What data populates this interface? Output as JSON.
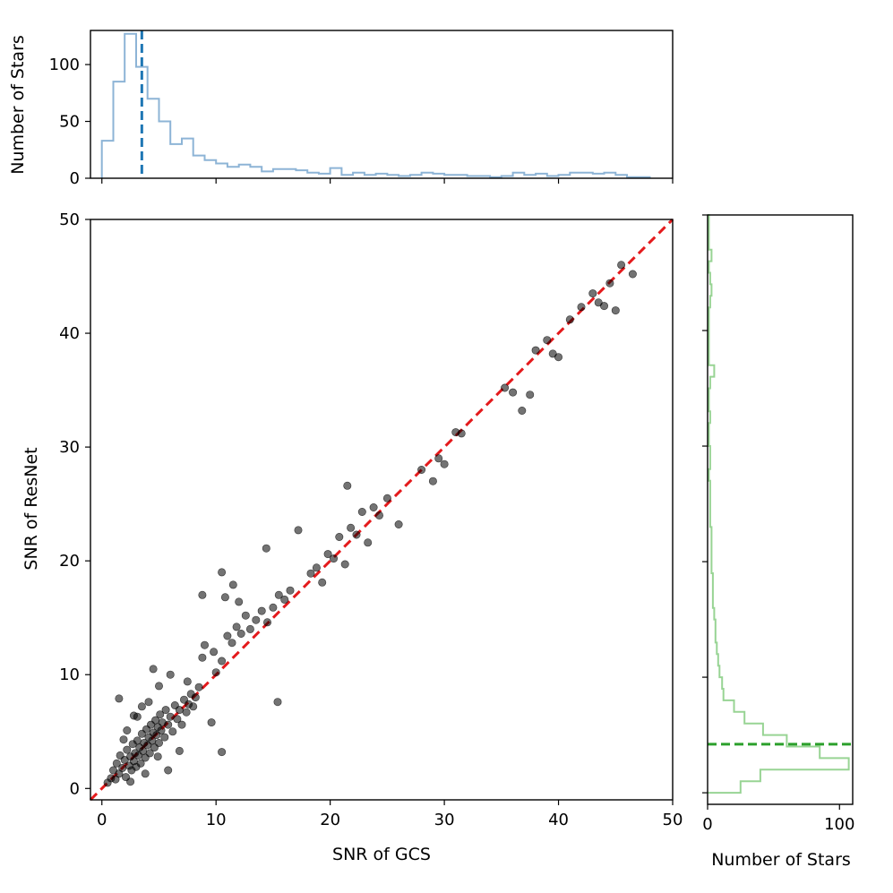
{
  "chart_data": [
    {
      "type": "scatter",
      "panel": "main",
      "xlabel": "SNR of GCS",
      "ylabel": "SNR of ResNet",
      "xlim": [
        -1,
        50
      ],
      "ylim": [
        -1,
        50
      ],
      "xticks": [
        "0",
        "10",
        "20",
        "30",
        "40",
        "50"
      ],
      "yticks": [
        "0",
        "10",
        "20",
        "30",
        "40",
        "50"
      ],
      "point_color": "#000000",
      "point_opacity": 0.55,
      "reference_line": {
        "from": [
          -1,
          -1
        ],
        "to": [
          50,
          50
        ],
        "color": "#e41a1c",
        "style": "dashed"
      },
      "points": [
        [
          0.5,
          0.5
        ],
        [
          0.8,
          0.9
        ],
        [
          1.0,
          1.6
        ],
        [
          1.2,
          0.8
        ],
        [
          1.3,
          2.2
        ],
        [
          1.5,
          1.3
        ],
        [
          1.6,
          2.9
        ],
        [
          1.8,
          1.8
        ],
        [
          2.0,
          2.5
        ],
        [
          2.1,
          1.0
        ],
        [
          2.2,
          3.4
        ],
        [
          2.4,
          2.0
        ],
        [
          2.5,
          2.8
        ],
        [
          2.6,
          1.6
        ],
        [
          2.7,
          3.9
        ],
        [
          2.8,
          2.4
        ],
        [
          2.9,
          3.1
        ],
        [
          3.0,
          1.9
        ],
        [
          3.1,
          4.2
        ],
        [
          3.2,
          2.9
        ],
        [
          3.3,
          3.6
        ],
        [
          3.4,
          2.2
        ],
        [
          3.5,
          4.8
        ],
        [
          3.6,
          3.3
        ],
        [
          3.7,
          4.0
        ],
        [
          3.8,
          2.7
        ],
        [
          3.9,
          5.2
        ],
        [
          4.0,
          3.8
        ],
        [
          4.1,
          4.5
        ],
        [
          4.2,
          3.1
        ],
        [
          4.3,
          5.6
        ],
        [
          4.4,
          4.2
        ],
        [
          4.5,
          4.9
        ],
        [
          4.6,
          3.6
        ],
        [
          4.7,
          6.0
        ],
        [
          4.8,
          4.7
        ],
        [
          4.9,
          5.4
        ],
        [
          5.0,
          4.0
        ],
        [
          5.1,
          6.5
        ],
        [
          5.2,
          5.1
        ],
        [
          5.3,
          5.8
        ],
        [
          5.5,
          4.5
        ],
        [
          5.6,
          6.9
        ],
        [
          5.8,
          5.6
        ],
        [
          6.0,
          6.3
        ],
        [
          6.2,
          5.0
        ],
        [
          6.4,
          7.3
        ],
        [
          6.6,
          6.1
        ],
        [
          6.8,
          6.9
        ],
        [
          7.0,
          5.6
        ],
        [
          7.2,
          7.8
        ],
        [
          7.4,
          6.7
        ],
        [
          7.6,
          7.4
        ],
        [
          7.8,
          8.3
        ],
        [
          8.0,
          7.2
        ],
        [
          8.2,
          8.0
        ],
        [
          8.5,
          8.9
        ],
        [
          1.5,
          7.9
        ],
        [
          4.5,
          10.5
        ],
        [
          2.8,
          6.4
        ],
        [
          3.5,
          7.2
        ],
        [
          5.0,
          9.0
        ],
        [
          6.0,
          10.0
        ],
        [
          7.5,
          9.4
        ],
        [
          3.8,
          1.3
        ],
        [
          5.8,
          1.6
        ],
        [
          6.8,
          3.3
        ],
        [
          9.6,
          5.8
        ],
        [
          10.5,
          3.2
        ],
        [
          4.9,
          2.8
        ],
        [
          8.8,
          11.5
        ],
        [
          9.0,
          12.6
        ],
        [
          9.8,
          12.0
        ],
        [
          10.0,
          10.2
        ],
        [
          10.5,
          11.2
        ],
        [
          11.0,
          13.4
        ],
        [
          11.4,
          12.8
        ],
        [
          11.8,
          14.2
        ],
        [
          12.2,
          13.6
        ],
        [
          12.6,
          15.2
        ],
        [
          13.0,
          14.0
        ],
        [
          13.5,
          14.8
        ],
        [
          14.0,
          15.6
        ],
        [
          14.5,
          14.6
        ],
        [
          15.0,
          15.9
        ],
        [
          15.5,
          17.0
        ],
        [
          16.0,
          16.6
        ],
        [
          16.5,
          17.4
        ],
        [
          12.0,
          16.4
        ],
        [
          10.5,
          19.0
        ],
        [
          10.8,
          16.8
        ],
        [
          11.5,
          17.9
        ],
        [
          8.8,
          17.0
        ],
        [
          14.4,
          21.1
        ],
        [
          15.4,
          7.6
        ],
        [
          17.2,
          22.7
        ],
        [
          18.3,
          18.9
        ],
        [
          18.8,
          19.4
        ],
        [
          19.3,
          18.1
        ],
        [
          19.8,
          20.6
        ],
        [
          20.3,
          20.2
        ],
        [
          20.8,
          22.1
        ],
        [
          21.3,
          19.7
        ],
        [
          21.8,
          22.9
        ],
        [
          22.3,
          22.3
        ],
        [
          22.8,
          24.3
        ],
        [
          23.3,
          21.6
        ],
        [
          23.8,
          24.7
        ],
        [
          24.3,
          24.0
        ],
        [
          25.0,
          25.5
        ],
        [
          21.5,
          26.6
        ],
        [
          26.0,
          23.2
        ],
        [
          28.0,
          28.0
        ],
        [
          29.0,
          27.0
        ],
        [
          29.5,
          29.0
        ],
        [
          30.0,
          28.5
        ],
        [
          31.0,
          31.3
        ],
        [
          31.5,
          31.2
        ],
        [
          35.3,
          35.2
        ],
        [
          36.0,
          34.8
        ],
        [
          36.8,
          33.2
        ],
        [
          37.5,
          34.6
        ],
        [
          38.0,
          38.5
        ],
        [
          39.0,
          39.4
        ],
        [
          39.5,
          38.2
        ],
        [
          40.0,
          37.9
        ],
        [
          41.0,
          41.2
        ],
        [
          42.0,
          42.3
        ],
        [
          43.0,
          43.5
        ],
        [
          43.5,
          42.7
        ],
        [
          44.0,
          42.4
        ],
        [
          44.5,
          44.4
        ],
        [
          45.0,
          42.0
        ],
        [
          45.5,
          46.0
        ],
        [
          46.5,
          45.2
        ],
        [
          2.2,
          5.1
        ],
        [
          3.1,
          6.3
        ],
        [
          4.1,
          7.6
        ],
        [
          2.5,
          0.6
        ],
        [
          1.9,
          4.3
        ]
      ]
    },
    {
      "type": "histogram",
      "panel": "top",
      "orientation": "vertical",
      "ylabel": "Number of Stars",
      "xlim": [
        -1,
        50
      ],
      "ylim": [
        0,
        130
      ],
      "xticks_shown": false,
      "yticks": [
        "0",
        "50",
        "100"
      ],
      "color": "#8db4d6",
      "bin_edges": [
        0,
        1,
        2,
        3,
        4,
        5,
        6,
        7,
        8,
        9,
        10,
        11,
        12,
        13,
        14,
        15,
        16,
        17,
        18,
        19,
        20,
        21,
        22,
        23,
        24,
        25,
        26,
        27,
        28,
        29,
        30,
        31,
        32,
        33,
        34,
        35,
        36,
        37,
        38,
        39,
        40,
        41,
        42,
        43,
        44,
        45,
        46,
        47,
        48
      ],
      "counts": [
        33,
        85,
        127,
        98,
        70,
        50,
        30,
        35,
        20,
        16,
        13,
        10,
        12,
        10,
        6,
        8,
        8,
        7,
        5,
        4,
        9,
        3,
        5,
        3,
        4,
        3,
        2,
        3,
        5,
        4,
        3,
        3,
        2,
        2,
        1,
        2,
        5,
        3,
        4,
        2,
        3,
        5,
        5,
        4,
        5,
        3,
        1,
        1
      ],
      "median_line": {
        "x": 3.5,
        "color": "#1f77b4",
        "style": "dashed"
      }
    },
    {
      "type": "histogram",
      "panel": "right",
      "orientation": "horizontal",
      "xlabel": "Number of Stars",
      "xlim": [
        0,
        110
      ],
      "ylim": [
        -1,
        50
      ],
      "xticks": [
        "0",
        "100"
      ],
      "yticks_shown": false,
      "color": "#98d494",
      "bin_edges": [
        0,
        1,
        2,
        3,
        4,
        5,
        6,
        7,
        8,
        9,
        10,
        11,
        12,
        13,
        14,
        15,
        16,
        17,
        18,
        19,
        20,
        21,
        22,
        23,
        24,
        25,
        26,
        27,
        28,
        29,
        30,
        31,
        32,
        33,
        34,
        35,
        36,
        37,
        38,
        39,
        40,
        41,
        42,
        43,
        44,
        45,
        46,
        47,
        48,
        49,
        50
      ],
      "counts": [
        25,
        40,
        107,
        85,
        60,
        42,
        28,
        20,
        12,
        11,
        9,
        8,
        7,
        6,
        6,
        5,
        4,
        4,
        4,
        3,
        3,
        3,
        3,
        2,
        2,
        2,
        2,
        1,
        2,
        2,
        1,
        1,
        2,
        1,
        1,
        2,
        5,
        1,
        1,
        1,
        1,
        1,
        2,
        3,
        2,
        1,
        3,
        1,
        1,
        1
      ],
      "median_line": {
        "y": 4.2,
        "color": "#2ca02c",
        "style": "dashed"
      }
    }
  ]
}
